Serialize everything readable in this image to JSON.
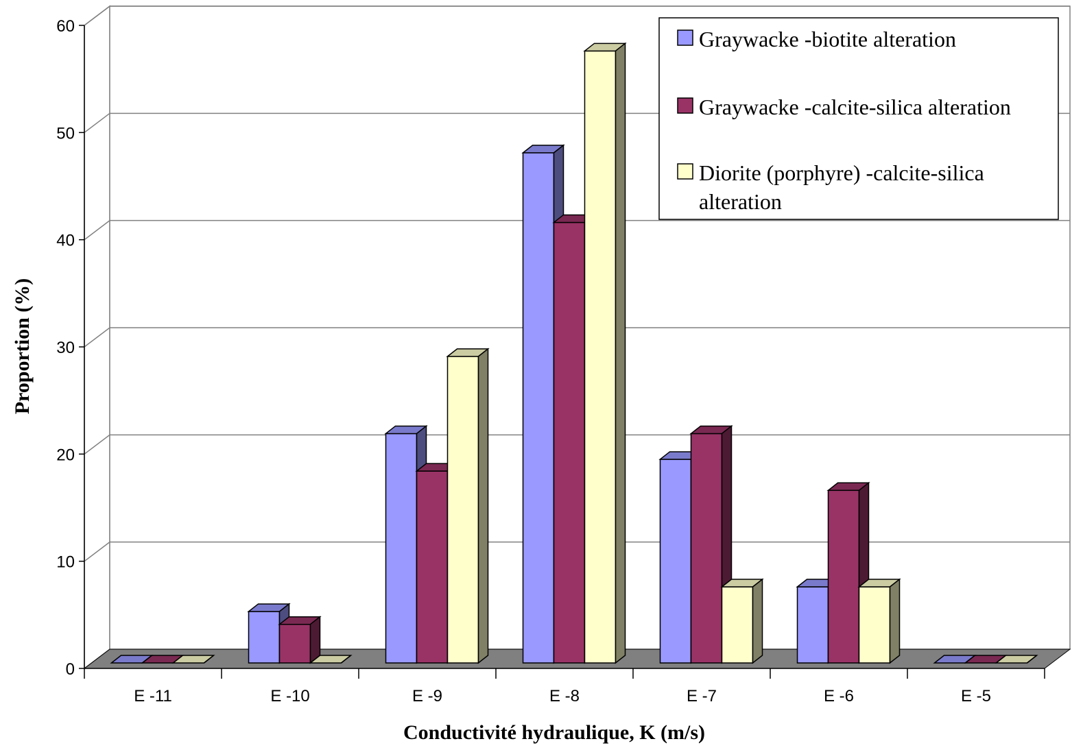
{
  "chart_data": {
    "type": "bar",
    "style": "3d-clustered-column",
    "categories": [
      "E -11",
      "E -10",
      "E -9",
      "E -8",
      "E -7",
      "E -6",
      "E -5"
    ],
    "series": [
      {
        "name": "Graywacke -biotite alteration",
        "color": "#9999ff",
        "values": [
          0,
          4.8,
          21.4,
          47.6,
          19.0,
          7.1,
          0
        ]
      },
      {
        "name": "Graywacke -calcite-silica alteration",
        "color": "#993366",
        "values": [
          0,
          3.6,
          17.9,
          41.1,
          21.4,
          16.1,
          0
        ]
      },
      {
        "name": "Diorite (porphyre) -calcite-silica alteration",
        "legend_lines": [
          "Diorite (porphyre) -calcite-silica",
          "alteration"
        ],
        "color": "#ffffcc",
        "values": [
          0,
          0,
          28.6,
          57.1,
          7.1,
          7.1,
          0
        ]
      }
    ],
    "xlabel": "Conductivité hydraulique, K (m/s)",
    "ylabel": "Proportion (%)",
    "ylim": [
      0,
      60
    ],
    "yticks": [
      "0",
      "10",
      "20",
      "30",
      "40",
      "50",
      "60"
    ],
    "grid": true,
    "legend_position": "top-right",
    "floor_color": "#808080"
  }
}
